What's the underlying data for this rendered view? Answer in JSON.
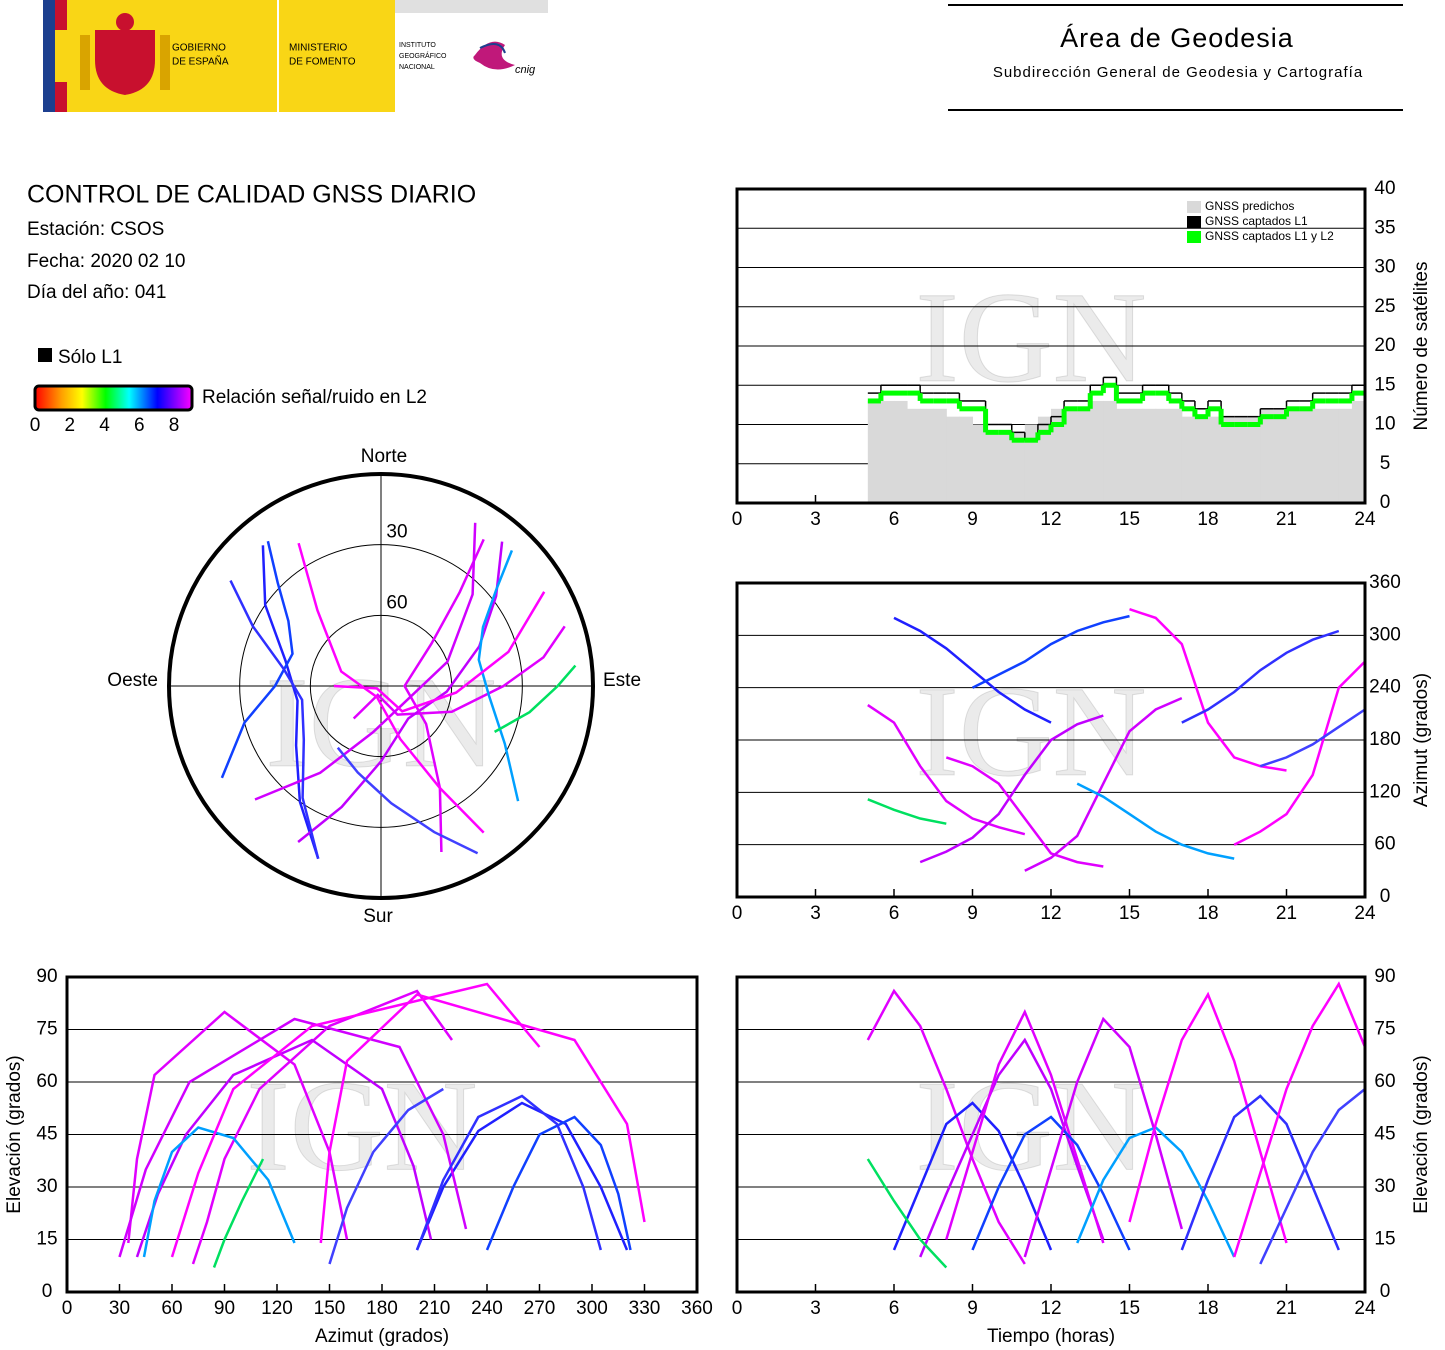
{
  "header": {
    "gobierno": [
      "GOBIERNO",
      "DE ESPAÑA"
    ],
    "ministerio": [
      "MINISTERIO",
      "DE FOMENTO"
    ],
    "instituto": [
      "INSTITUTO",
      "GEOGRÁFICO",
      "NACIONAL"
    ],
    "cnig": "cnig",
    "area": "Área de Geodesia",
    "subdireccion": "Subdirección General de Geodesia y Cartografía"
  },
  "report": {
    "title": "CONTROL DE CALIDAD GNSS DIARIO",
    "station": "Estación: CSOS",
    "date": "Fecha: 2020 02 10",
    "doy": "Día del año: 041"
  },
  "chart_data": [
    {
      "type": "step",
      "watermark": "IGN",
      "xlim": [
        0,
        24
      ],
      "xticks": [
        0,
        3,
        6,
        9,
        12,
        15,
        18,
        21,
        24
      ],
      "ylim": [
        0,
        40
      ],
      "yticks": [
        0,
        5,
        10,
        15,
        20,
        25,
        30,
        35,
        40
      ],
      "ylabel": "Número de satélites",
      "grid": true,
      "legend": "top-right",
      "x": [
        5,
        5.5,
        6,
        6.5,
        7,
        7.5,
        8,
        8.5,
        9,
        9.5,
        10,
        10.5,
        11,
        11.5,
        12,
        12.5,
        13,
        13.5,
        14,
        14.5,
        15,
        15.5,
        16,
        16.5,
        17,
        17.5,
        18,
        18.5,
        19,
        19.5,
        20,
        20.5,
        21,
        21.5,
        22,
        22.5,
        23,
        23.5
      ],
      "series": [
        {
          "name": "GNSS predichos",
          "color": "#d9d9d9",
          "values": [
            13,
            13,
            13,
            12,
            12,
            12,
            11,
            11,
            10,
            9,
            9,
            9,
            10,
            11,
            12,
            12,
            12,
            13,
            13,
            12,
            12,
            12,
            12,
            12,
            11,
            11,
            11,
            11,
            11,
            11,
            12,
            12,
            12,
            12,
            12,
            12,
            12,
            13
          ]
        },
        {
          "name": "GNSS captados L1",
          "color": "#000000",
          "values": [
            14,
            15,
            15,
            15,
            14,
            14,
            14,
            13,
            13,
            10,
            10,
            9,
            8,
            10,
            11,
            13,
            13,
            15,
            16,
            14,
            14,
            15,
            15,
            14,
            13,
            12,
            13,
            11,
            11,
            11,
            12,
            12,
            13,
            13,
            14,
            14,
            14,
            15
          ]
        },
        {
          "name": "GNSS captados L1 y L2",
          "color": "#00ff00",
          "values": [
            13,
            14,
            14,
            14,
            13,
            13,
            13,
            12,
            12,
            9,
            9,
            8,
            8,
            9,
            10,
            12,
            12,
            14,
            15,
            13,
            13,
            14,
            14,
            13,
            12,
            11,
            12,
            10,
            10,
            10,
            11,
            11,
            12,
            12,
            13,
            13,
            13,
            14
          ]
        }
      ]
    },
    {
      "type": "polar",
      "watermark": "IGN",
      "north": "Norte",
      "south": "Sur",
      "east": "Este",
      "west": "Oeste",
      "rings": [
        30,
        60
      ],
      "only_l1": "Sólo L1",
      "colorbar": {
        "label": "Relación señal/ruido en L2",
        "lim": [
          0,
          8
        ],
        "ticks": [
          0,
          2,
          4,
          6,
          8
        ]
      },
      "series": [
        {
          "color": "#e000ff",
          "time": [
            5,
            6,
            7,
            8,
            9,
            10,
            11
          ],
          "azimuth": [
            220,
            200,
            150,
            110,
            90,
            80,
            72
          ],
          "elevation": [
            72,
            86,
            76,
            58,
            38,
            20,
            8
          ]
        },
        {
          "color": "#2020ff",
          "time": [
            6,
            7,
            8,
            9,
            10,
            11,
            12
          ],
          "azimuth": [
            320,
            305,
            285,
            260,
            235,
            215,
            200
          ],
          "elevation": [
            12,
            30,
            48,
            54,
            46,
            30,
            12
          ]
        },
        {
          "color": "#c000ff",
          "time": [
            7,
            8,
            9,
            10,
            11,
            12,
            13,
            14
          ],
          "azimuth": [
            40,
            52,
            68,
            95,
            140,
            180,
            198,
            208
          ],
          "elevation": [
            10,
            28,
            45,
            62,
            72,
            58,
            36,
            15
          ]
        },
        {
          "color": "#e000ff",
          "time": [
            8,
            9,
            10,
            11,
            12,
            13,
            14
          ],
          "azimuth": [
            160,
            150,
            130,
            90,
            50,
            40,
            35
          ],
          "elevation": [
            15,
            40,
            65,
            80,
            62,
            38,
            14
          ]
        },
        {
          "color": "#1040ff",
          "time": [
            9,
            10,
            11,
            12,
            13,
            14,
            15
          ],
          "azimuth": [
            240,
            255,
            270,
            290,
            305,
            315,
            322
          ],
          "elevation": [
            12,
            30,
            45,
            50,
            42,
            28,
            12
          ]
        },
        {
          "color": "#d000ff",
          "time": [
            11,
            12,
            13,
            14,
            15,
            16,
            17
          ],
          "azimuth": [
            30,
            45,
            70,
            130,
            190,
            215,
            228
          ],
          "elevation": [
            10,
            35,
            60,
            78,
            70,
            45,
            18
          ]
        },
        {
          "color": "#00a0ff",
          "time": [
            13,
            14,
            15,
            16,
            17,
            18,
            19
          ],
          "azimuth": [
            130,
            115,
            95,
            75,
            60,
            50,
            44
          ],
          "elevation": [
            14,
            32,
            44,
            47,
            40,
            26,
            10
          ]
        },
        {
          "color": "#ff00ff",
          "time": [
            15,
            16,
            17,
            18,
            19,
            20,
            21
          ],
          "azimuth": [
            330,
            320,
            290,
            200,
            160,
            150,
            145
          ],
          "elevation": [
            20,
            48,
            72,
            85,
            66,
            40,
            14
          ]
        },
        {
          "color": "#3030ff",
          "time": [
            17,
            18,
            19,
            20,
            21,
            22,
            23
          ],
          "azimuth": [
            200,
            215,
            235,
            260,
            280,
            295,
            305
          ],
          "elevation": [
            12,
            32,
            50,
            56,
            48,
            30,
            12
          ]
        },
        {
          "color": "#ff00ff",
          "time": [
            19,
            20,
            21,
            22,
            23,
            24
          ],
          "azimuth": [
            60,
            75,
            95,
            140,
            240,
            270
          ],
          "elevation": [
            10,
            34,
            58,
            76,
            88,
            70
          ]
        },
        {
          "color": "#00e060",
          "time": [
            5,
            6,
            7,
            8
          ],
          "azimuth": [
            112,
            100,
            90,
            84
          ],
          "elevation": [
            38,
            26,
            15,
            7
          ]
        },
        {
          "color": "#4040ff",
          "time": [
            20,
            21,
            22,
            23,
            24
          ],
          "azimuth": [
            150,
            160,
            175,
            195,
            215
          ],
          "elevation": [
            8,
            24,
            40,
            52,
            58
          ]
        }
      ]
    },
    {
      "type": "line",
      "watermark": "IGN",
      "xlim": [
        0,
        24
      ],
      "xticks": [
        0,
        3,
        6,
        9,
        12,
        15,
        18,
        21,
        24
      ],
      "ylim": [
        0,
        360
      ],
      "yticks": [
        0,
        60,
        120,
        180,
        240,
        300,
        360
      ],
      "ylabel": "Azimut (grados)",
      "grid": true
    },
    {
      "type": "line",
      "watermark": "IGN",
      "xlim": [
        0,
        360
      ],
      "xticks": [
        0,
        30,
        60,
        90,
        120,
        150,
        180,
        210,
        240,
        270,
        300,
        330,
        360
      ],
      "ylim": [
        0,
        90
      ],
      "yticks": [
        0,
        15,
        30,
        45,
        60,
        75,
        90
      ],
      "xlabel": "Azimut (grados)",
      "ylabel": "Elevación (grados)",
      "grid": true
    },
    {
      "type": "line",
      "watermark": "IGN",
      "xlim": [
        0,
        24
      ],
      "xticks": [
        0,
        3,
        6,
        9,
        12,
        15,
        18,
        21,
        24
      ],
      "ylim": [
        0,
        90
      ],
      "yticks": [
        0,
        15,
        30,
        45,
        60,
        75,
        90
      ],
      "xlabel": "Tiempo (horas)",
      "ylabel": "Elevación (grados)",
      "grid": true
    }
  ]
}
